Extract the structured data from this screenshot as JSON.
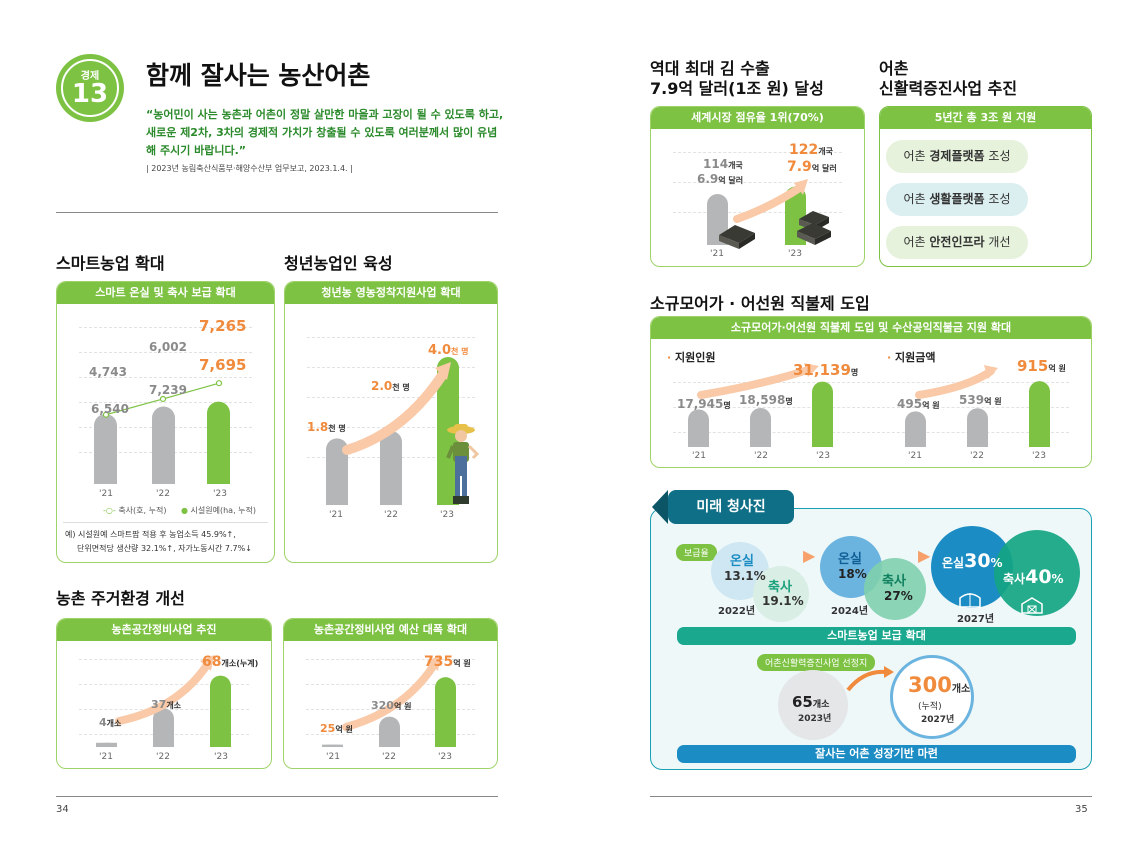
{
  "header": {
    "badge_label": "경제",
    "badge_number": "13",
    "title": "함께 잘사는 농산어촌",
    "quote": "“농어민이 사는 농촌과 어촌이 정말 살만한 마을과 고장이 될 수 있도록 하고, 새로운 제2차, 3차의 경제적 가치가 창출될 수 있도록 여러분께서 많이 유념해 주시기 바랍니다.”",
    "source": "| 2023년 농림축산식품부·해양수산부 업무보고, 2023.1.4. |"
  },
  "smart_farm": {
    "section_title": "스마트농업 확대",
    "card_title": "스마트 온실 및 축사 보급 확대",
    "years": [
      "'21",
      "'22",
      "'23"
    ],
    "facility_values": [
      "6,540",
      "7,239",
      "7,695"
    ],
    "livestock_values": [
      "4,743",
      "6,002",
      "7,265"
    ],
    "legend_livestock": "축사(호, 누적)",
    "legend_facility": "시설원예(ha, 누적)",
    "note_line1": "예) 시설원예 스마트팜 적용 후 농업소득 45.9%↑,",
    "note_line2": "단위면적당 생산량 32.1%↑, 자가노동시간 7.7%↓",
    "chart_data": {
      "type": "bar",
      "categories": [
        "'21",
        "'22",
        "'23"
      ],
      "series": [
        {
          "name": "시설원예(ha, 누적)",
          "values": [
            6540,
            7239,
            7695
          ]
        },
        {
          "name": "축사(호, 누적)",
          "values": [
            4743,
            6002,
            7265
          ]
        }
      ]
    }
  },
  "young_farmers": {
    "section_title": "청년농업인 육성",
    "card_title": "청년농 영농정착지원사업 확대",
    "years": [
      "'21",
      "'22",
      "'23"
    ],
    "values": [
      "1.8",
      "2.0",
      "4.0"
    ],
    "unit": "천 명",
    "chart_data": {
      "type": "bar",
      "categories": [
        "'21",
        "'22",
        "'23"
      ],
      "values": [
        1.8,
        2.0,
        4.0
      ]
    }
  },
  "housing": {
    "section_title": "농촌 주거환경 개선",
    "card1_title": "농촌공간정비사업 추진",
    "card1_years": [
      "'21",
      "'22",
      "'23"
    ],
    "card1_values": [
      "4",
      "37",
      "68"
    ],
    "card1_units": [
      "개소",
      "개소",
      "개소(누계)"
    ],
    "card2_title": "농촌공간정비사업 예산 대폭 확대",
    "card2_years": [
      "'21",
      "'22",
      "'23"
    ],
    "card2_values": [
      "25",
      "320",
      "735"
    ],
    "card2_unit": "억 원",
    "chart_data": [
      {
        "type": "bar",
        "categories": [
          "'21",
          "'22",
          "'23"
        ],
        "values": [
          4,
          37,
          68
        ]
      },
      {
        "type": "bar",
        "categories": [
          "'21",
          "'22",
          "'23"
        ],
        "values": [
          25,
          320,
          735
        ]
      }
    ]
  },
  "page_left": "34",
  "exports": {
    "title_line1": "역대 최대 김 수출",
    "title_line2": "7.9억 달러(1조 원) 달성",
    "card_title": "세계시장 점유율 1위(70%)",
    "years": [
      "'21",
      "'23"
    ],
    "countries": [
      "114",
      "122"
    ],
    "countries_unit": "개국",
    "amounts": [
      "6.9",
      "7.9"
    ],
    "amount_unit": "억 달러",
    "chart_data": {
      "type": "bar",
      "categories": [
        "'21",
        "'23"
      ],
      "values": [
        6.9,
        7.9
      ]
    }
  },
  "fishing_village": {
    "title_line1": "어촌",
    "title_line2": "신활력증진사업 추진",
    "card_title": "5년간 총 3조 원 지원",
    "items": [
      {
        "prefix": "어촌 ",
        "bold": "경제플랫폼",
        "suffix": " 조성"
      },
      {
        "prefix": "어촌 ",
        "bold": "생활플랫폼",
        "suffix": " 조성"
      },
      {
        "prefix": "어촌 ",
        "bold": "안전인프라",
        "suffix": " 개선"
      }
    ]
  },
  "direct_payment": {
    "section_title": "소규모어가 · 어선원 직불제 도입",
    "card_title": "소규모어가·어선원 직불제 도입 및 수산공익직불금 지원 확대",
    "people_label": "지원인원",
    "people_values": [
      "17,945",
      "18,598",
      "31,139"
    ],
    "people_unit": "명",
    "amount_label": "지원금액",
    "amount_values": [
      "495",
      "539",
      "915"
    ],
    "amount_unit": "억 원",
    "years": [
      "'21",
      "'22",
      "'23"
    ],
    "chart_data": [
      {
        "type": "bar",
        "categories": [
          "'21",
          "'22",
          "'23"
        ],
        "values": [
          17945,
          18598,
          31139
        ]
      },
      {
        "type": "bar",
        "categories": [
          "'21",
          "'22",
          "'23"
        ],
        "values": [
          495,
          539,
          915
        ]
      }
    ]
  },
  "future": {
    "tab_title": "미래 청사진",
    "rate_label": "보급율",
    "greenhouse": "온실",
    "livestock": "축사",
    "y2022": {
      "greenhouse": "13.1%",
      "livestock": "19.1%",
      "year": "2022년"
    },
    "y2024": {
      "greenhouse": "18%",
      "livestock": "27%",
      "year": "2024년"
    },
    "y2027": {
      "greenhouse": "30",
      "livestock": "40",
      "pct": "%",
      "year": "2027년"
    },
    "band1": "스마트농업 보급 확대",
    "selection_label": "어촌신활력증진사업 선정지",
    "sel_2023_value": "65",
    "sel_2023_unit": "개소",
    "sel_2023_year": "2023년",
    "sel_2027_value": "300",
    "sel_2027_unit": "개소",
    "sel_2027_note": "(누적)",
    "sel_2027_year": "2027년",
    "band2": "잘사는 어촌 성장기반 마련"
  },
  "page_right": "35"
}
